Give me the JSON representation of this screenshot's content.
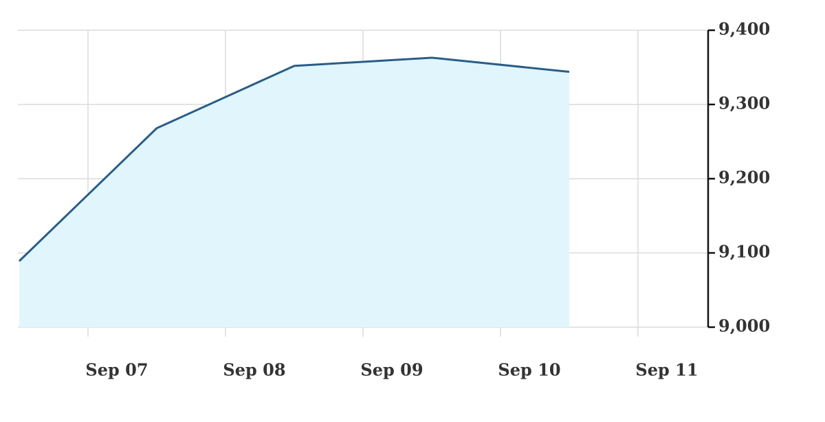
{
  "chart_data": {
    "type": "area",
    "x": [
      0.5,
      1.5,
      2.5,
      3.5,
      4.5
    ],
    "series": [
      {
        "color": "#2a5d87",
        "fill": "#e0f6fc",
        "values": [
          9089,
          9268,
          9352,
          9363,
          9344
        ]
      }
    ],
    "xlim": [
      0.5,
      5.5
    ],
    "xticks": [
      {
        "value": 1,
        "label": "Sep 07"
      },
      {
        "value": 2,
        "label": "Sep 08"
      },
      {
        "value": 3,
        "label": "Sep 09"
      },
      {
        "value": 4,
        "label": "Sep 10"
      },
      {
        "value": 5,
        "label": "Sep 11"
      }
    ],
    "ylim": [
      9000,
      9400
    ],
    "yticks": [
      {
        "value": 9000,
        "label": "9,000"
      },
      {
        "value": 9100,
        "label": "9,100"
      },
      {
        "value": 9200,
        "label": "9,200"
      },
      {
        "value": 9300,
        "label": "9,300"
      },
      {
        "value": 9400,
        "label": "9,400"
      }
    ],
    "grid": true,
    "y_axis_side": "right"
  }
}
